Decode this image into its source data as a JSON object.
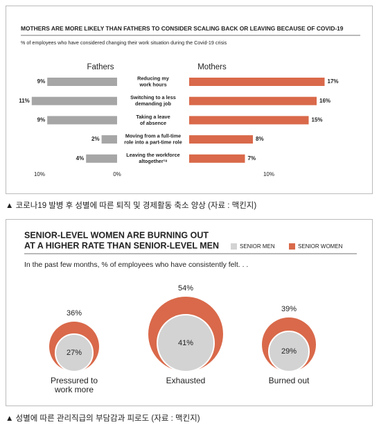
{
  "chart_data": [
    {
      "type": "butterfly",
      "title": "MOTHERS ARE MORE LIKELY THAN FATHERS TO CONSIDER SCALING BACK OR LEAVING BECAUSE OF COVID-19",
      "subtitle": "% of employees who have considered changing their work situation during the Covid-19 crisis",
      "categories": [
        [
          "Reducing my",
          "work hours"
        ],
        [
          "Switching to a less",
          "demanding job"
        ],
        [
          "Taking a leave",
          "of absence"
        ],
        [
          "Moving from a full-time",
          "role into a part-time role"
        ],
        [
          "Leaving the workforce",
          "altogether¹⁸"
        ]
      ],
      "series": [
        {
          "name": "Fathers",
          "color": "#a6a6a6",
          "values": [
            9,
            11,
            9,
            2,
            4
          ],
          "value_labels": [
            "9%",
            "11%",
            "9%",
            "2%",
            "4%"
          ]
        },
        {
          "name": "Mothers",
          "color": "#d9694a",
          "values": [
            17,
            16,
            15,
            8,
            7
          ],
          "value_labels": [
            "17%",
            "16%",
            "15%",
            "8%",
            "7%"
          ]
        }
      ],
      "xlim": [
        0,
        10
      ],
      "xticks": [
        {
          "value": 10,
          "label": "10%"
        },
        {
          "value": 0,
          "label": "0%"
        }
      ],
      "x2ticks": [
        {
          "value": 10,
          "label": "10%"
        }
      ],
      "caption": "▲ 코로나19 발병 후 성별에 따른 퇴직 및 경제활동 축소 양상 (자료 : 맥킨지)"
    },
    {
      "type": "nested_circles",
      "title": [
        "SENIOR-LEVEL WOMEN ARE BURNING OUT",
        "AT A HIGHER RATE THAN SENIOR-LEVEL MEN"
      ],
      "subtitle": "In the past few months, % of employees who have consistently felt. . .",
      "categories": [
        [
          "Pressured to",
          "work more"
        ],
        [
          "Exhausted"
        ],
        [
          "Burned out"
        ]
      ],
      "series": [
        {
          "name": "SENIOR MEN",
          "color": "#d3d3d3",
          "values": [
            27,
            41,
            29
          ],
          "value_labels": [
            "27%",
            "41%",
            "29%"
          ]
        },
        {
          "name": "SENIOR WOMEN",
          "color": "#d9694a",
          "values": [
            36,
            54,
            39
          ],
          "value_labels": [
            "36%",
            "54%",
            "39%"
          ]
        }
      ],
      "caption": "▲ 성별에 따른 관리직급의 부담감과 피로도 (자료 : 맥킨지)"
    }
  ]
}
